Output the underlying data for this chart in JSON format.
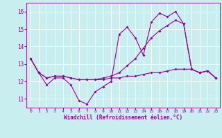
{
  "xlabel": "Windchill (Refroidissement éolien,°C)",
  "ylabel": "",
  "bg_color": "#c8eef0",
  "grid_color": "#ffffff",
  "line_color": "#990099",
  "xlim": [
    -0.5,
    23.5
  ],
  "ylim": [
    10.5,
    16.5
  ],
  "yticks": [
    11,
    12,
    13,
    14,
    15,
    16
  ],
  "xticks": [
    0,
    1,
    2,
    3,
    4,
    5,
    6,
    7,
    8,
    9,
    10,
    11,
    12,
    13,
    14,
    15,
    16,
    17,
    18,
    19,
    20,
    21,
    22,
    23
  ],
  "series1_x": [
    0,
    1,
    2,
    3,
    4,
    5,
    6,
    7,
    8,
    9,
    10,
    11,
    12,
    13,
    14,
    15,
    16,
    17,
    18,
    19,
    20,
    21,
    22,
    23
  ],
  "series1_y": [
    13.3,
    12.5,
    11.8,
    12.2,
    12.2,
    11.8,
    10.9,
    10.7,
    11.4,
    11.7,
    12.0,
    14.7,
    15.1,
    14.5,
    13.5,
    15.4,
    15.9,
    15.7,
    16.0,
    15.3,
    12.7,
    12.5,
    12.6,
    12.2
  ],
  "series2_x": [
    0,
    1,
    2,
    3,
    4,
    5,
    6,
    7,
    8,
    9,
    10,
    11,
    12,
    13,
    14,
    15,
    16,
    17,
    18,
    19,
    20,
    21,
    22,
    23
  ],
  "series2_y": [
    13.3,
    12.5,
    12.2,
    12.3,
    12.3,
    12.2,
    12.1,
    12.1,
    12.1,
    12.1,
    12.2,
    12.2,
    12.3,
    12.3,
    12.4,
    12.5,
    12.5,
    12.6,
    12.7,
    12.7,
    12.7,
    12.5,
    12.6,
    12.2
  ],
  "series3_x": [
    0,
    1,
    2,
    3,
    4,
    5,
    6,
    7,
    8,
    9,
    10,
    11,
    12,
    13,
    14,
    15,
    16,
    17,
    18,
    19,
    20,
    21,
    22,
    23
  ],
  "series3_y": [
    13.3,
    12.5,
    12.2,
    12.3,
    12.3,
    12.2,
    12.1,
    12.1,
    12.1,
    12.2,
    12.3,
    12.5,
    12.9,
    13.3,
    13.9,
    14.5,
    14.9,
    15.2,
    15.5,
    15.3,
    12.7,
    12.5,
    12.6,
    12.2
  ]
}
